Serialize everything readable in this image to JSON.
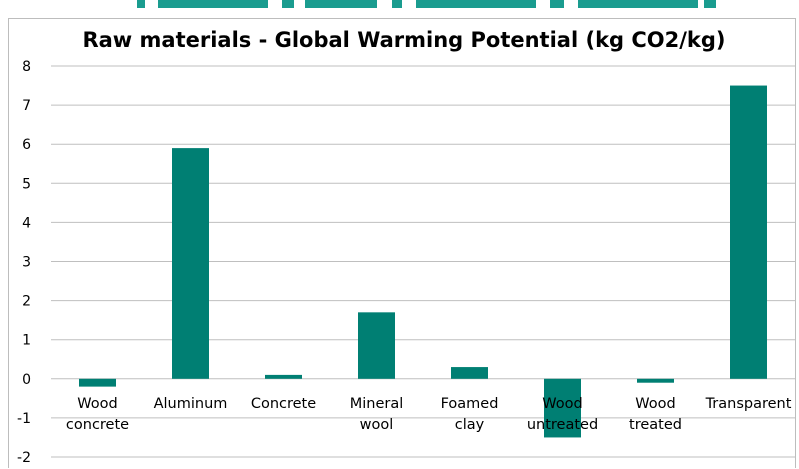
{
  "header_fragment": {
    "color": "#1a9c8f"
  },
  "chart_data": {
    "type": "bar",
    "title": "Raw materials - Global Warming Potential (kg CO2/kg)",
    "categories": [
      [
        "Wood",
        "concrete"
      ],
      [
        "Aluminum"
      ],
      [
        "Concrete"
      ],
      [
        "Mineral",
        "wool"
      ],
      [
        "Foamed",
        "clay"
      ],
      [
        "Wood",
        "untreated"
      ],
      [
        "Wood",
        "treated"
      ],
      [
        "Transparent"
      ]
    ],
    "values": [
      -0.2,
      5.9,
      0.1,
      1.7,
      0.3,
      -1.5,
      -0.1,
      7.5
    ],
    "ylim": [
      -2,
      8
    ],
    "yticks": [
      8,
      7,
      6,
      5,
      4,
      3,
      2,
      1,
      0,
      -1,
      -2
    ],
    "bar_color": "#007f73",
    "grid": true,
    "grid_color": "#bfbfbf"
  }
}
